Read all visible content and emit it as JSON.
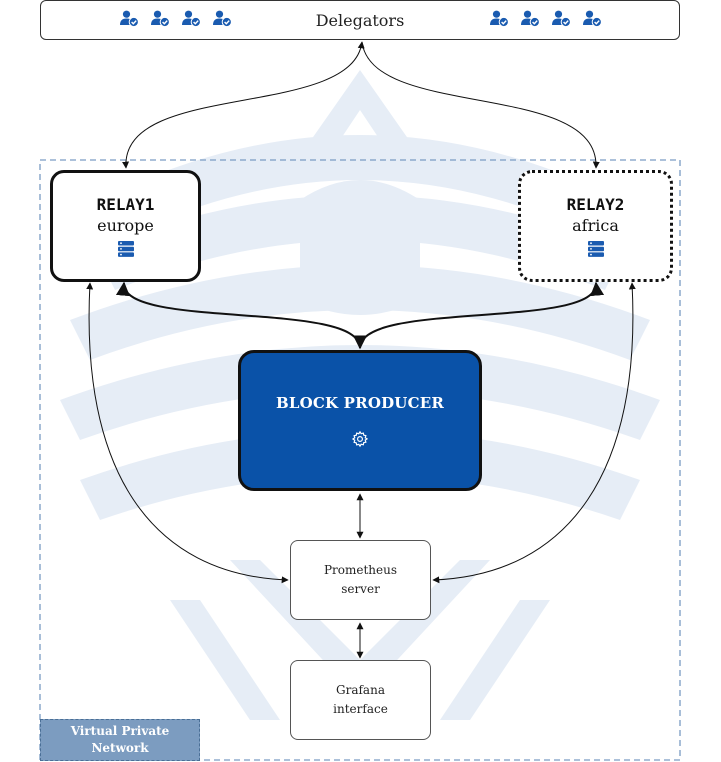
{
  "delegators": {
    "label": "Delegators",
    "icon": "user-check-icon",
    "icon_count_left": 4,
    "icon_count_right": 4
  },
  "relay1": {
    "name": "RELAY1",
    "region": "europe",
    "icon": "server-icon"
  },
  "relay2": {
    "name": "RELAY2",
    "region": "africa",
    "icon": "server-icon"
  },
  "producer": {
    "name": "BLOCK PRODUCER",
    "icon": "gear-icon"
  },
  "prometheus": {
    "line1": "Prometheus",
    "line2": "server"
  },
  "grafana": {
    "line1": "Grafana",
    "line2": "interface"
  },
  "vpn": {
    "line1": "Virtual Private",
    "line2": "Network"
  },
  "colors": {
    "producer_fill": "#0a52a8",
    "icon_blue": "#1a5bb0",
    "vpn_border": "#7a9cc4",
    "vpn_label_fill": "#7c9cc0",
    "watermark": "#e6edf6"
  }
}
